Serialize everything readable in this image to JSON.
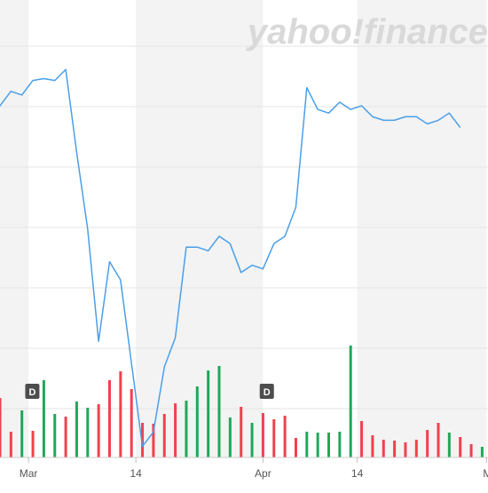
{
  "brand": {
    "logo_text": "yahoo!finance",
    "logo_color": "#d9d9d9"
  },
  "colors": {
    "price_line": "#4a9fe8",
    "volume_up": "#20a85a",
    "volume_down": "#f0414e",
    "band_shade": "#f3f3f3",
    "gridline": "#e6e6e6",
    "tick_text": "#555555",
    "dividend_marker_bg": "#4d4d4d",
    "dividend_marker_text": "#ffffff"
  },
  "chart_data": {
    "type": "line",
    "title": "",
    "xlabel": "",
    "ylabel": "",
    "y_tick_labels": [],
    "grid": true,
    "x_tick_labels": [
      "Mar",
      "14",
      "Apr",
      "14",
      "M"
    ],
    "dividend_markers": [
      {
        "label": "D",
        "x": "Mar"
      },
      {
        "label": "D",
        "x": "Apr"
      }
    ],
    "price": {
      "ylim": [
        0,
        100
      ],
      "points": [
        [
          -1,
          89
        ],
        [
          0,
          86
        ],
        [
          1,
          90
        ],
        [
          2,
          89
        ],
        [
          3,
          93
        ],
        [
          4,
          93.5
        ],
        [
          5,
          93
        ],
        [
          6,
          96
        ],
        [
          7,
          73
        ],
        [
          8,
          52
        ],
        [
          9,
          21
        ],
        [
          10,
          43
        ],
        [
          11,
          38
        ],
        [
          12,
          15
        ],
        [
          13,
          -8
        ],
        [
          14,
          -4
        ],
        [
          15,
          14
        ],
        [
          16,
          22
        ],
        [
          17,
          47
        ],
        [
          18,
          47
        ],
        [
          19,
          46
        ],
        [
          20,
          50
        ],
        [
          21,
          48
        ],
        [
          22,
          40
        ],
        [
          23,
          42
        ],
        [
          24,
          41
        ],
        [
          25,
          48
        ],
        [
          26,
          50
        ],
        [
          27,
          58
        ],
        [
          28,
          91
        ],
        [
          29,
          85
        ],
        [
          30,
          84
        ],
        [
          31,
          87
        ],
        [
          32,
          85
        ],
        [
          33,
          86
        ],
        [
          34,
          83
        ],
        [
          35,
          82
        ],
        [
          36,
          82
        ],
        [
          37,
          83
        ],
        [
          38,
          83
        ],
        [
          39,
          81
        ],
        [
          40,
          82
        ],
        [
          41,
          84
        ],
        [
          42,
          80
        ]
      ]
    },
    "volume": {
      "ylim": [
        0,
        100
      ],
      "bars": [
        {
          "x": -1,
          "v": 52,
          "up": false
        },
        {
          "x": 0,
          "v": 67,
          "up": false
        },
        {
          "x": 1,
          "v": 29,
          "up": false
        },
        {
          "x": 2,
          "v": 53,
          "up": true
        },
        {
          "x": 3,
          "v": 30,
          "up": false
        },
        {
          "x": 4,
          "v": 87,
          "up": true
        },
        {
          "x": 5,
          "v": 49,
          "up": true
        },
        {
          "x": 6,
          "v": 46,
          "up": false
        },
        {
          "x": 7,
          "v": 63,
          "up": true
        },
        {
          "x": 8,
          "v": 56,
          "up": true
        },
        {
          "x": 9,
          "v": 60,
          "up": false
        },
        {
          "x": 10,
          "v": 87,
          "up": false
        },
        {
          "x": 11,
          "v": 97,
          "up": false
        },
        {
          "x": 12,
          "v": 77,
          "up": false
        },
        {
          "x": 13,
          "v": 39,
          "up": false
        },
        {
          "x": 14,
          "v": 38,
          "up": false
        },
        {
          "x": 15,
          "v": 49,
          "up": false
        },
        {
          "x": 16,
          "v": 61,
          "up": false
        },
        {
          "x": 17,
          "v": 64,
          "up": true
        },
        {
          "x": 18,
          "v": 80,
          "up": true
        },
        {
          "x": 19,
          "v": 98,
          "up": true
        },
        {
          "x": 20,
          "v": 103,
          "up": true
        },
        {
          "x": 21,
          "v": 45,
          "up": true
        },
        {
          "x": 22,
          "v": 57,
          "up": false
        },
        {
          "x": 23,
          "v": 39,
          "up": true
        },
        {
          "x": 24,
          "v": 50,
          "up": false
        },
        {
          "x": 25,
          "v": 43,
          "up": false
        },
        {
          "x": 26,
          "v": 47,
          "up": false
        },
        {
          "x": 27,
          "v": 22,
          "up": false
        },
        {
          "x": 28,
          "v": 29,
          "up": true
        },
        {
          "x": 29,
          "v": 28,
          "up": true
        },
        {
          "x": 30,
          "v": 28,
          "up": true
        },
        {
          "x": 31,
          "v": 29,
          "up": true
        },
        {
          "x": 32,
          "v": 126,
          "up": true
        },
        {
          "x": 33,
          "v": 41,
          "up": false
        },
        {
          "x": 34,
          "v": 25,
          "up": false
        },
        {
          "x": 35,
          "v": 20,
          "up": false
        },
        {
          "x": 36,
          "v": 19,
          "up": false
        },
        {
          "x": 37,
          "v": 17,
          "up": false
        },
        {
          "x": 38,
          "v": 20,
          "up": false
        },
        {
          "x": 39,
          "v": 31,
          "up": false
        },
        {
          "x": 40,
          "v": 39,
          "up": false
        },
        {
          "x": 41,
          "v": 28,
          "up": true
        },
        {
          "x": 42,
          "v": 23,
          "up": false
        },
        {
          "x": 43,
          "v": 15,
          "up": false
        },
        {
          "x": 44,
          "v": 12,
          "up": true
        },
        {
          "x": 45,
          "v": 29,
          "up": false
        }
      ]
    }
  }
}
